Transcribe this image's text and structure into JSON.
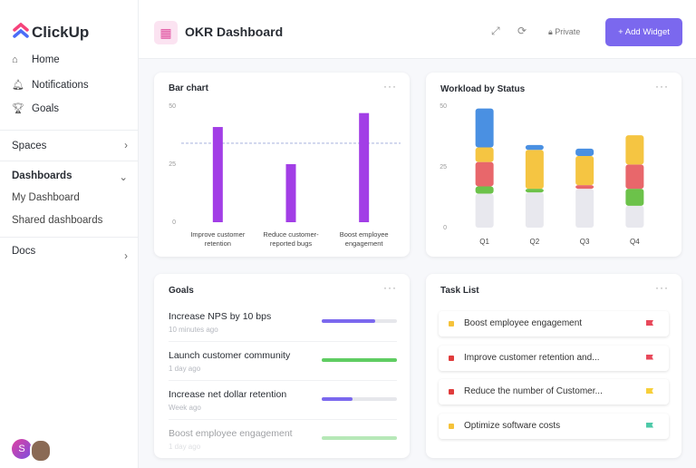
{
  "sidebar": {
    "logo": "ClickUp",
    "nav": [
      "Home",
      "Notifications",
      "Goals"
    ],
    "spaces": "Spaces",
    "dashboards": "Dashboards",
    "dashboard_links": [
      "My Dashboard",
      "Shared dashboards"
    ],
    "docs": "Docs",
    "avatar": "S"
  },
  "header": {
    "title": "OKR Dashboard",
    "privacy": "Private",
    "add_widget": "+ Add Widget"
  },
  "chart_data": [
    {
      "type": "bar",
      "title": "Bar chart",
      "categories": [
        "Improve customer retention",
        "Reduce customer-reported bugs",
        "Boost employee engagement"
      ],
      "values": [
        41,
        25,
        47
      ],
      "color": "#a23ee6",
      "ylim": [
        0,
        50
      ],
      "yticks": [
        0,
        25,
        50
      ],
      "target_line": 34
    },
    {
      "type": "stacked_bar",
      "title": "Workload by Status",
      "categories": [
        "Q1",
        "Q2",
        "Q3",
        "Q4"
      ],
      "ylim": [
        0,
        50
      ],
      "yticks": [
        0,
        25,
        50
      ],
      "series": [
        {
          "color": "#e8e8ee",
          "values": [
            14,
            14.5,
            16,
            9
          ]
        },
        {
          "color": "#6cc24a",
          "values": [
            3,
            1.5,
            null,
            7
          ]
        },
        {
          "color": "#e8676b",
          "values": [
            10,
            null,
            1.5,
            10
          ]
        },
        {
          "color": "#f5c542",
          "values": [
            6,
            16,
            12,
            12
          ]
        },
        {
          "color": "#4a90e2",
          "values": [
            16,
            2,
            3,
            null
          ]
        }
      ]
    }
  ],
  "goals": {
    "title": "Goals",
    "items": [
      {
        "name": "Increase NPS by 10 bps",
        "time": "10 minutes ago",
        "progress": 71,
        "color": "#7b68ee"
      },
      {
        "name": "Launch customer community",
        "time": "1 day ago",
        "progress": 100,
        "color": "#5fcd62"
      },
      {
        "name": "Increase net dollar retention",
        "time": "Week ago",
        "progress": 41,
        "color": "#7b68ee"
      },
      {
        "name": "Boost employee engagement",
        "time": "1 day ago",
        "progress": 100,
        "color": "#5fcd62"
      }
    ]
  },
  "tasks": {
    "title": "Task List",
    "items": [
      {
        "name": "Boost employee engagement",
        "status_color": "#f5c23a",
        "flag_color": "#e8485a"
      },
      {
        "name": "Improve customer retention and...",
        "status_color": "#e03c3c",
        "flag_color": "#e8485a"
      },
      {
        "name": "Reduce the number of Customer...",
        "status_color": "#e03c3c",
        "flag_color": "#f7cf3a"
      },
      {
        "name": "Optimize software costs",
        "status_color": "#f5c23a",
        "flag_color": "#4dc9a8"
      }
    ]
  }
}
